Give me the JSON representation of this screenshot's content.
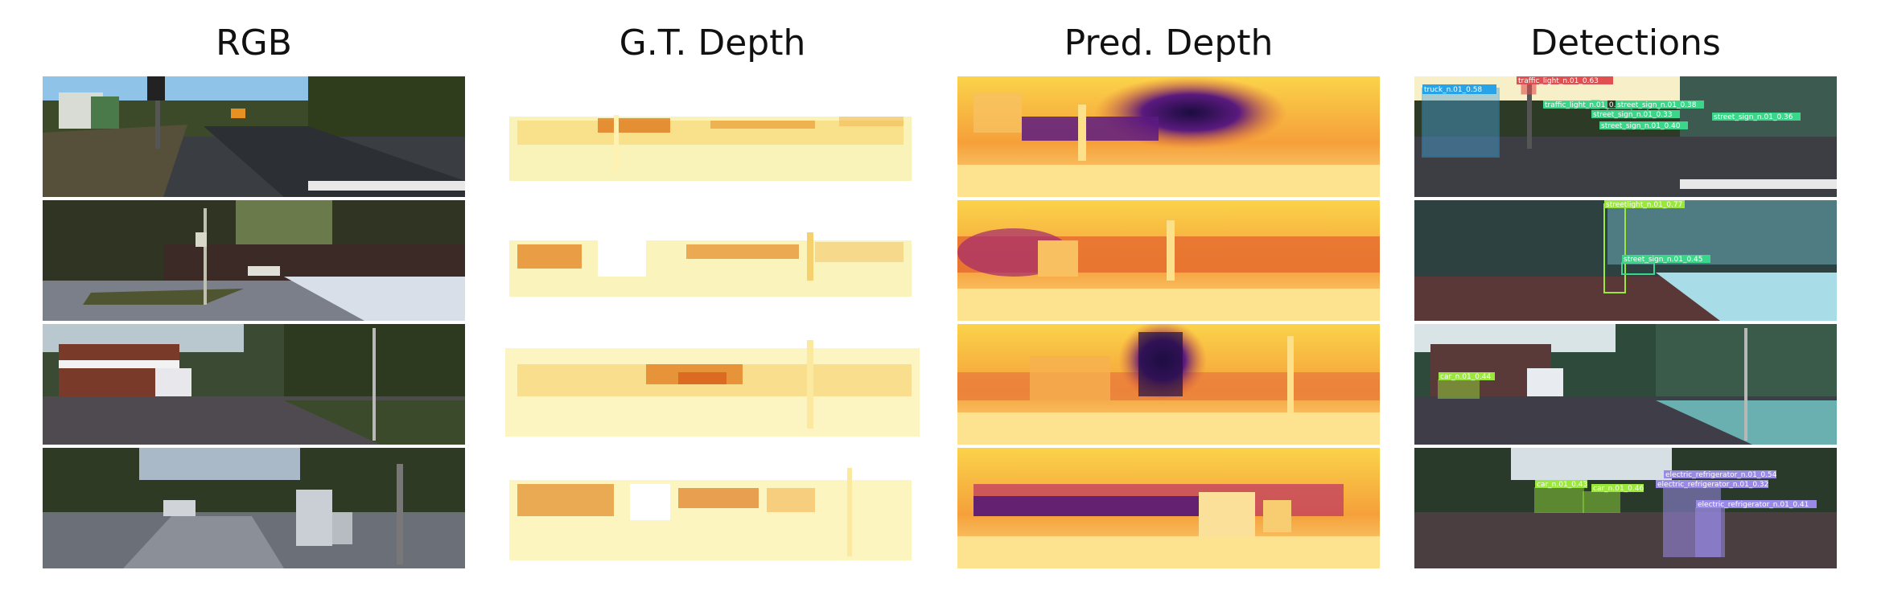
{
  "columns": {
    "rgb": "RGB",
    "gt_depth": "G.T. Depth",
    "pred_depth": "Pred. Depth",
    "detections": "Detections"
  },
  "detections": {
    "row1": [
      {
        "label": "truck_n.01_0.58",
        "color": "#29a3e8"
      },
      {
        "label": "traffic_light_n.01_0.63",
        "color": "#e05050"
      },
      {
        "label": "traffic_light_n.01_0.2",
        "color": "#3cd68a"
      },
      {
        "label": "street_sign_n.01_0.38",
        "color": "#3cd68a"
      },
      {
        "label": "street_sign_n.01_0.33",
        "color": "#3cd68a"
      },
      {
        "label": "street_sign_n.01_0.40",
        "color": "#3cd68a"
      },
      {
        "label": "street_sign_n.01_0.36",
        "color": "#3cd68a"
      }
    ],
    "row2": [
      {
        "label": "streetlight_n.01_0.77",
        "color": "#9be83c"
      },
      {
        "label": "street_sign_n.01_0.45",
        "color": "#3cd68a"
      }
    ],
    "row3": [
      {
        "label": "car_n.01_0.44",
        "color": "#9be83c"
      }
    ],
    "row4": [
      {
        "label": "car_n.01_0.43",
        "color": "#9be83c"
      },
      {
        "label": "car_n.01_0.46",
        "color": "#9be83c"
      },
      {
        "label": "electric_refrigerator_n.01_0.54",
        "color": "#9a8ae8"
      },
      {
        "label": "electric_refrigerator_n.01_0.32",
        "color": "#9a8ae8"
      },
      {
        "label": "electric_refrigerator_n.01_0.41",
        "color": "#9a8ae8"
      }
    ]
  }
}
